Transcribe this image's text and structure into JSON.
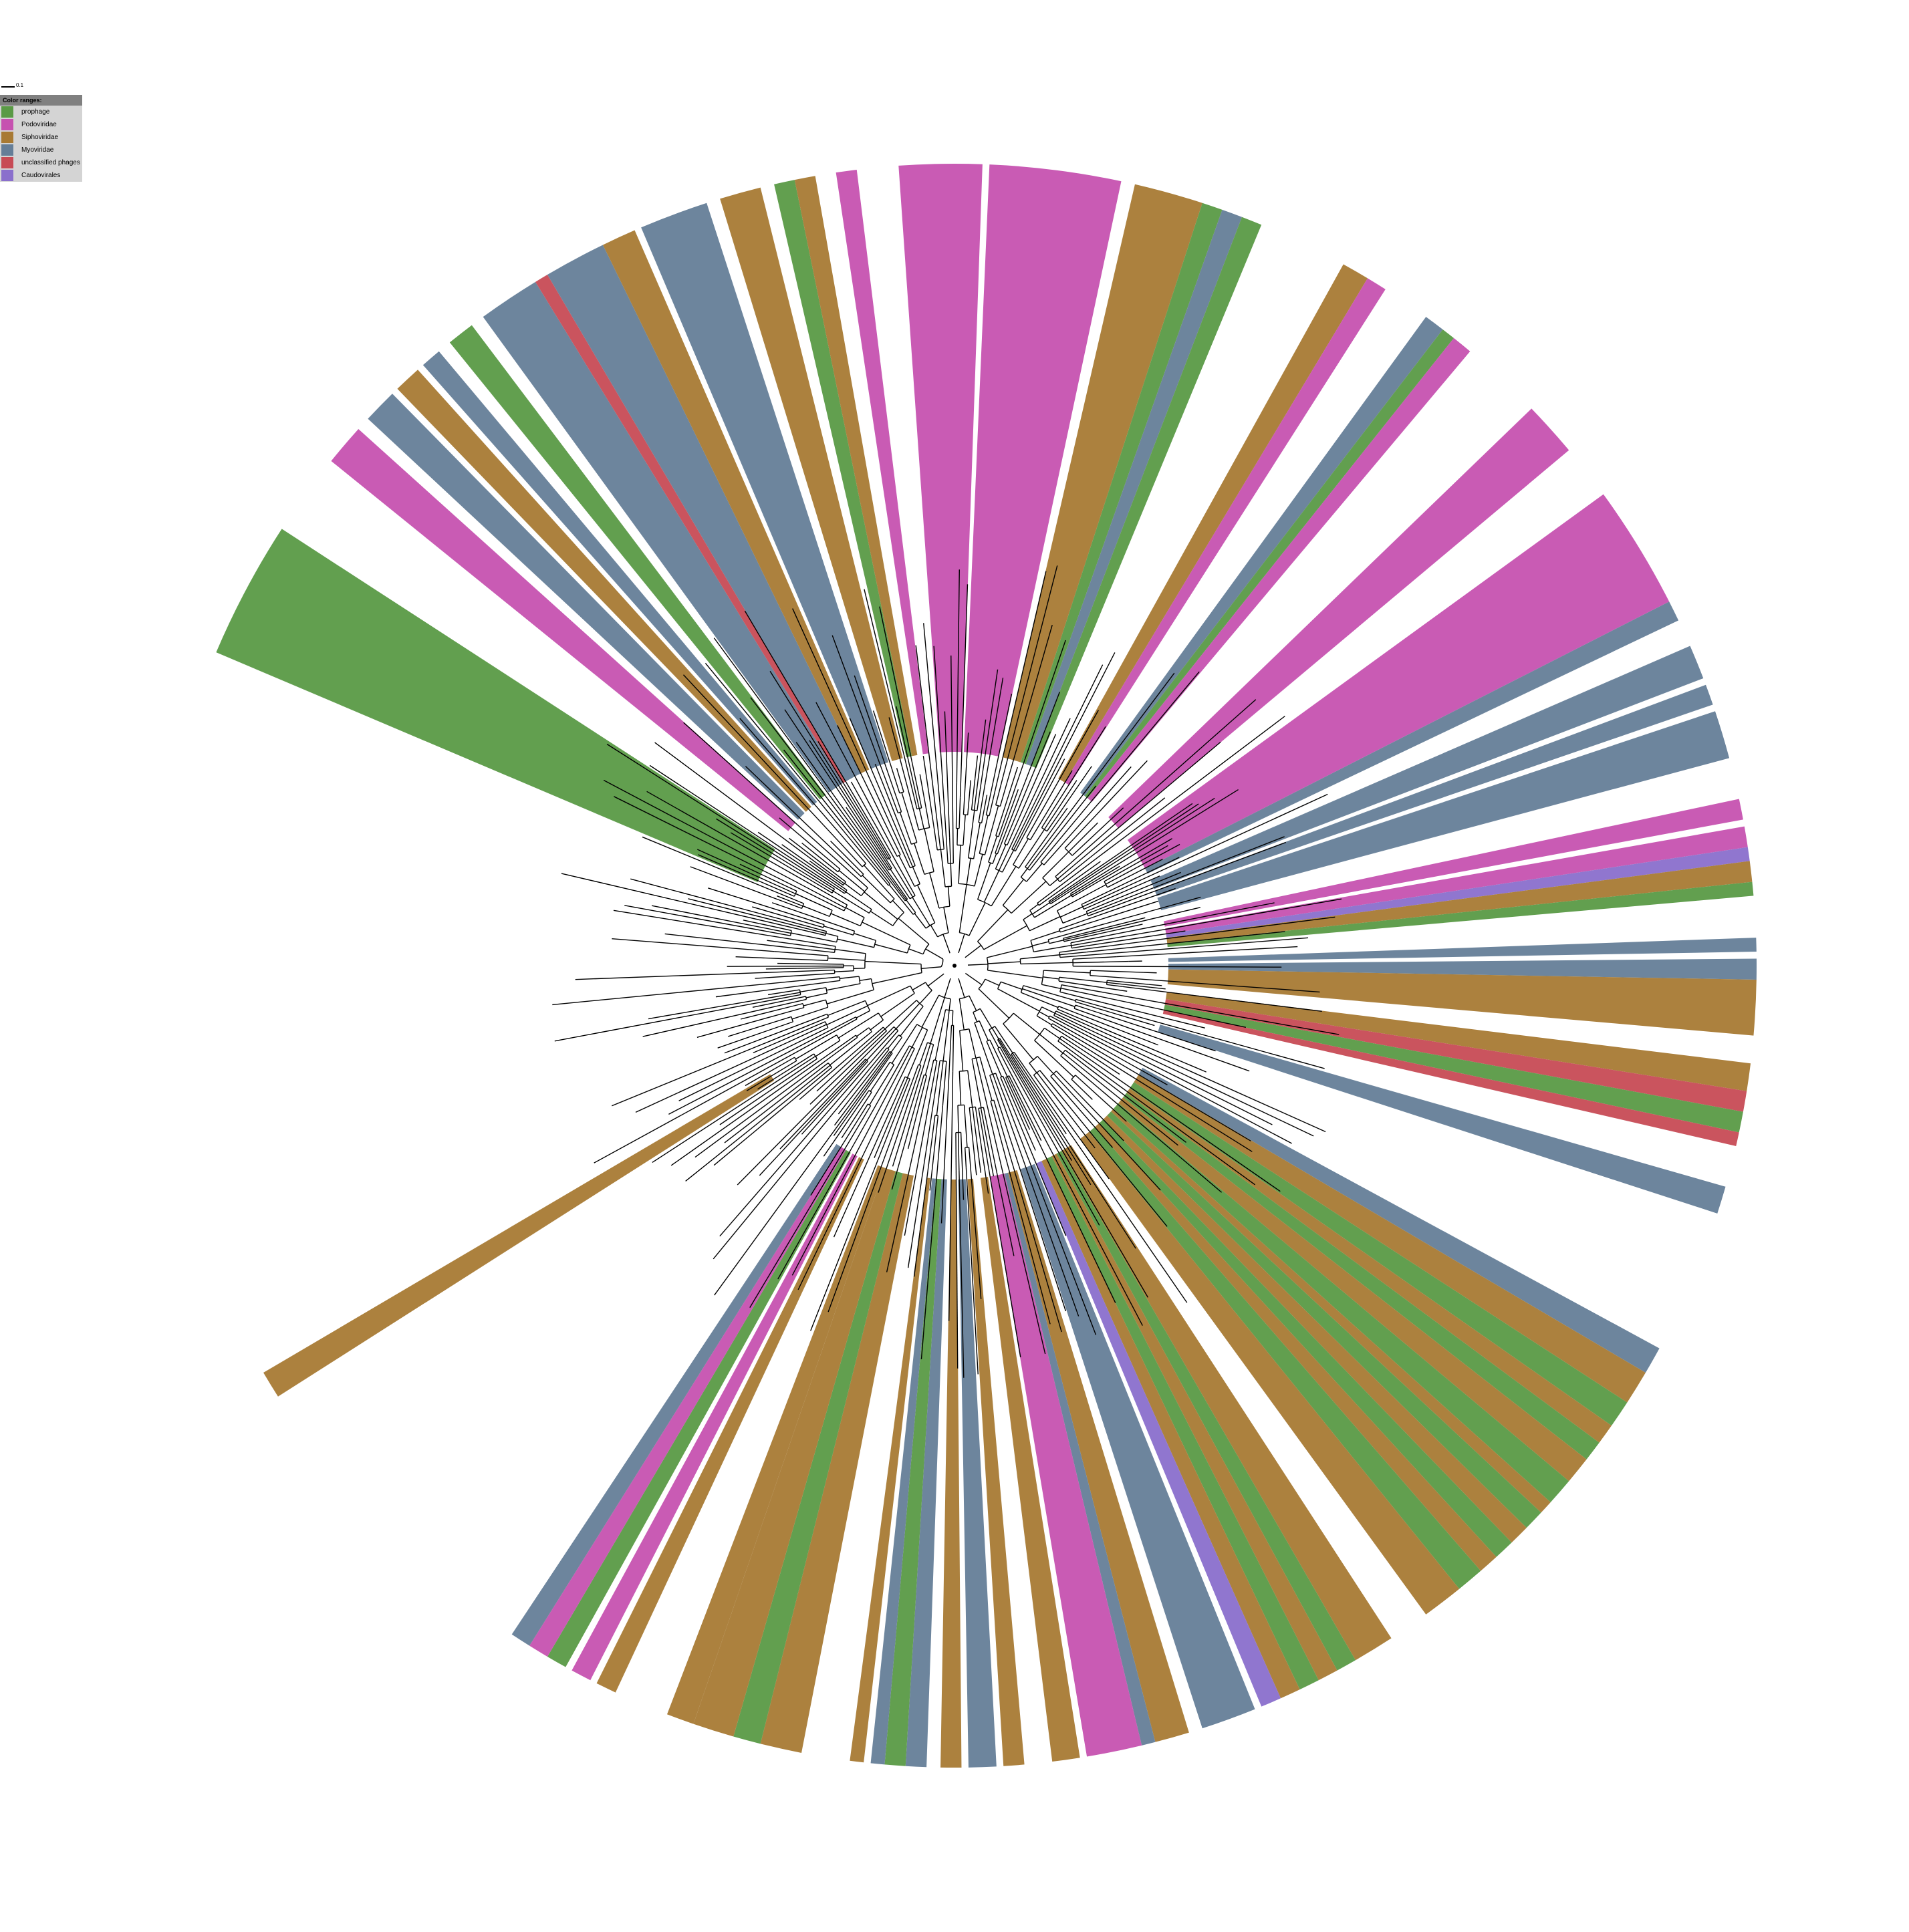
{
  "scale_bar": {
    "label": "0.1"
  },
  "legend": {
    "title": "Color ranges:",
    "items": [
      {
        "label": "prophage",
        "color": "#5a9a46"
      },
      {
        "label": "Podoviridae",
        "color": "#c652b0"
      },
      {
        "label": "Siphoviridae",
        "color": "#a87a34"
      },
      {
        "label": "Myoviridae",
        "color": "#657e98"
      },
      {
        "label": "unclassified phages",
        "color": "#c74b55"
      },
      {
        "label": "Caudovirales",
        "color": "#8a6fcc"
      }
    ]
  },
  "wedges": [
    {
      "start": -141,
      "end": -138,
      "family": "Podoviridae"
    },
    {
      "start": -137,
      "end": -134.5,
      "family": "Myoviridae"
    },
    {
      "start": -134,
      "end": -132,
      "family": "Siphoviridae"
    },
    {
      "start": -131.5,
      "end": -130,
      "family": "Myoviridae"
    },
    {
      "start": -129,
      "end": -127,
      "family": "prophage"
    },
    {
      "start": -126,
      "end": -121.5,
      "family": "Myoviridae"
    },
    {
      "start": -121.5,
      "end": -120.5,
      "family": "unclassified phages"
    },
    {
      "start": -120.5,
      "end": -116,
      "family": "Myoviridae"
    },
    {
      "start": -116,
      "end": -113.5,
      "family": "Siphoviridae"
    },
    {
      "start": -113,
      "end": -108,
      "family": "Myoviridae"
    },
    {
      "start": -107,
      "end": -104,
      "family": "Siphoviridae"
    },
    {
      "start": -103,
      "end": -101.5,
      "family": "prophage"
    },
    {
      "start": -101.5,
      "end": -100,
      "family": "Siphoviridae"
    },
    {
      "start": -98.5,
      "end": -97,
      "family": "Podoviridae"
    },
    {
      "start": -94,
      "end": -88,
      "family": "Podoviridae"
    },
    {
      "start": -87.5,
      "end": -78,
      "family": "Podoviridae"
    },
    {
      "start": -77,
      "end": -72,
      "family": "Siphoviridae"
    },
    {
      "start": -72,
      "end": -70.5,
      "family": "prophage"
    },
    {
      "start": -70.5,
      "end": -69,
      "family": "Myoviridae"
    },
    {
      "start": -69,
      "end": -67.5,
      "family": "prophage"
    },
    {
      "start": -61,
      "end": -59,
      "family": "Siphoviridae"
    },
    {
      "start": -59,
      "end": -57.5,
      "family": "Podoviridae"
    },
    {
      "start": -54,
      "end": -52.5,
      "family": "Myoviridae"
    },
    {
      "start": -52.5,
      "end": -51.5,
      "family": "prophage"
    },
    {
      "start": -51.5,
      "end": -50,
      "family": "Podoviridae"
    },
    {
      "start": -44,
      "end": -40,
      "family": "Podoviridae"
    },
    {
      "start": -36,
      "end": -27,
      "family": "Podoviridae"
    },
    {
      "start": -27,
      "end": -25.5,
      "family": "Myoviridae"
    },
    {
      "start": -23.5,
      "end": -21,
      "family": "Myoviridae"
    },
    {
      "start": -20.5,
      "end": -19,
      "family": "Myoviridae"
    },
    {
      "start": -18.5,
      "end": -15,
      "family": "Myoviridae"
    },
    {
      "start": -12,
      "end": -10.5,
      "family": "Podoviridae"
    },
    {
      "start": -10,
      "end": -8.5,
      "family": "Podoviridae"
    },
    {
      "start": -8.5,
      "end": -7.5,
      "family": "Caudovirales"
    },
    {
      "start": -7.5,
      "end": -6,
      "family": "Siphoviridae"
    },
    {
      "start": -6,
      "end": -5,
      "family": "prophage"
    },
    {
      "start": -2,
      "end": -1,
      "family": "Myoviridae"
    },
    {
      "start": -0.5,
      "end": 1,
      "family": "Myoviridae"
    },
    {
      "start": 1,
      "end": 5,
      "family": "Siphoviridae"
    },
    {
      "start": 7,
      "end": 9,
      "family": "Siphoviridae"
    },
    {
      "start": 9,
      "end": 10.5,
      "family": "unclassified phages"
    },
    {
      "start": 10.5,
      "end": 12,
      "family": "prophage"
    },
    {
      "start": 12,
      "end": 13,
      "family": "unclassified phages"
    },
    {
      "start": 16,
      "end": 18,
      "family": "Myoviridae"
    },
    {
      "start": 28.5,
      "end": 30.5,
      "family": "Myoviridae"
    },
    {
      "start": 30.5,
      "end": 33,
      "family": "Siphoviridae"
    },
    {
      "start": 33,
      "end": 35,
      "family": "prophage"
    },
    {
      "start": 35,
      "end": 36.5,
      "family": "Siphoviridae"
    },
    {
      "start": 36.5,
      "end": 38,
      "family": "prophage"
    },
    {
      "start": 38,
      "end": 40,
      "family": "Siphoviridae"
    },
    {
      "start": 40,
      "end": 42,
      "family": "prophage"
    },
    {
      "start": 42,
      "end": 43,
      "family": "Siphoviridae"
    },
    {
      "start": 43,
      "end": 44.5,
      "family": "prophage"
    },
    {
      "start": 44.5,
      "end": 46,
      "family": "Siphoviridae"
    },
    {
      "start": 46,
      "end": 47.5,
      "family": "prophage"
    },
    {
      "start": 47.5,
      "end": 49,
      "family": "Siphoviridae"
    },
    {
      "start": 49,
      "end": 51,
      "family": "prophage"
    },
    {
      "start": 51,
      "end": 54,
      "family": "Siphoviridae"
    },
    {
      "start": 57,
      "end": 60,
      "family": "Siphoviridae"
    },
    {
      "start": 60,
      "end": 61.5,
      "family": "prophage"
    },
    {
      "start": 61.5,
      "end": 63,
      "family": "Siphoviridae"
    },
    {
      "start": 63,
      "end": 64.5,
      "family": "prophage"
    },
    {
      "start": 64.5,
      "end": 66,
      "family": "Siphoviridae"
    },
    {
      "start": 66,
      "end": 67.5,
      "family": "Caudovirales"
    },
    {
      "start": 68,
      "end": 72,
      "family": "Myoviridae"
    },
    {
      "start": 73,
      "end": 75.5,
      "family": "Siphoviridae"
    },
    {
      "start": 75.5,
      "end": 76.5,
      "family": "Myoviridae"
    },
    {
      "start": 76.5,
      "end": 80.5,
      "family": "Podoviridae"
    },
    {
      "start": 81,
      "end": 83,
      "family": "Siphoviridae"
    },
    {
      "start": 85,
      "end": 86.5,
      "family": "Siphoviridae"
    },
    {
      "start": 87,
      "end": 89,
      "family": "Myoviridae"
    },
    {
      "start": 89.5,
      "end": 91,
      "family": "Siphoviridae"
    },
    {
      "start": 92,
      "end": 93.5,
      "family": "Myoviridae"
    },
    {
      "start": 93.5,
      "end": 95,
      "family": "prophage"
    },
    {
      "start": 95,
      "end": 96,
      "family": "Myoviridae"
    },
    {
      "start": 96.5,
      "end": 97.5,
      "family": "Siphoviridae"
    },
    {
      "start": 101,
      "end": 104,
      "family": "Siphoviridae"
    },
    {
      "start": 104,
      "end": 106,
      "family": "prophage"
    },
    {
      "start": 106,
      "end": 109,
      "family": "Siphoviridae"
    },
    {
      "start": 109,
      "end": 111,
      "family": "Siphoviridae"
    },
    {
      "start": 115,
      "end": 116.5,
      "family": "Siphoviridae"
    },
    {
      "start": 117,
      "end": 118.5,
      "family": "Podoviridae"
    },
    {
      "start": 119,
      "end": 120.5,
      "family": "prophage"
    },
    {
      "start": 120.5,
      "end": 122,
      "family": "Podoviridae"
    },
    {
      "start": 122,
      "end": 123.5,
      "family": "Myoviridae"
    },
    {
      "start": 147.5,
      "end": 149.5,
      "family": "Siphoviridae"
    },
    {
      "start": 203,
      "end": 213,
      "family": "prophage"
    }
  ]
}
